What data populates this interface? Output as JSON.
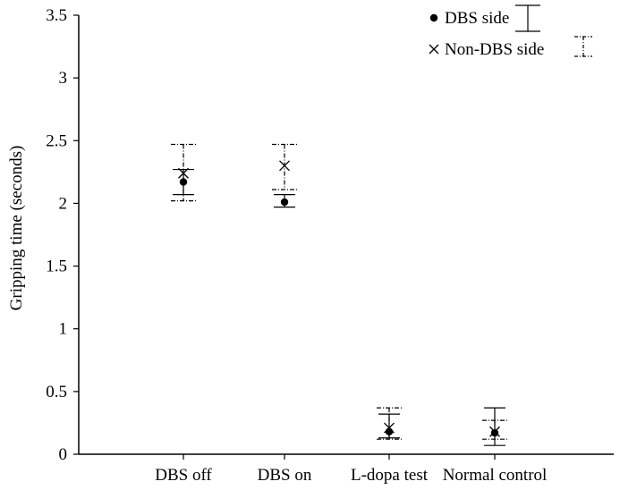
{
  "chart_data": {
    "type": "scatter",
    "title": "",
    "ylabel": "Gripping time (seconds)",
    "xlabel": "",
    "categories": [
      "DBS off",
      "DBS on",
      "L-dopa test",
      "Normal control"
    ],
    "ylim": [
      0,
      3.5
    ],
    "yticks": [
      0,
      0.5,
      1,
      1.5,
      2,
      2.5,
      3,
      3.5
    ],
    "ytick_labels": [
      "0",
      "0.5",
      "1",
      "1.5",
      "2",
      "2.5",
      "3",
      "3.5"
    ],
    "grid": false,
    "legend_position": "top-right",
    "series": [
      {
        "name": "DBS side",
        "marker": "dot",
        "error_style": "solid",
        "color": "#000000",
        "values": [
          2.17,
          2.01,
          0.18,
          0.17
        ],
        "err_low": [
          2.07,
          1.97,
          0.13,
          0.07
        ],
        "err_high": [
          2.27,
          2.07,
          0.32,
          0.37
        ]
      },
      {
        "name": "Non-DBS side",
        "marker": "x",
        "error_style": "dashdot",
        "color": "#000000",
        "values": [
          2.24,
          2.3,
          0.21,
          0.18
        ],
        "err_low": [
          2.02,
          2.11,
          0.12,
          0.12
        ],
        "err_high": [
          2.47,
          2.47,
          0.37,
          0.27
        ]
      }
    ]
  }
}
